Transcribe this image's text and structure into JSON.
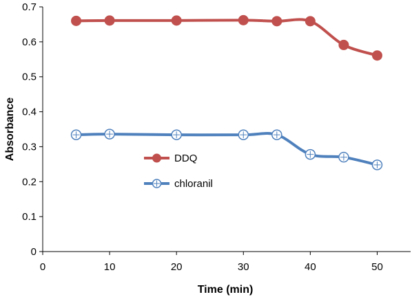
{
  "chart_data": {
    "type": "line",
    "xlabel": "Time (min)",
    "ylabel": "Absorbance",
    "xlim": [
      0,
      55
    ],
    "ylim": [
      0,
      0.7
    ],
    "x_ticks": [
      0,
      10,
      20,
      30,
      40,
      50
    ],
    "y_ticks": [
      0,
      0.1,
      0.2,
      0.3,
      0.4,
      0.5,
      0.6,
      0.7
    ],
    "x_tick_labels": [
      "0",
      "10",
      "20",
      "30",
      "40",
      "50"
    ],
    "y_tick_labels": [
      "0",
      "0.1",
      "0.2",
      "0.3",
      "0.4",
      "0.5",
      "0.6",
      "0.7"
    ],
    "grid": false,
    "legend_position": "center-left",
    "series": [
      {
        "name": "DDQ",
        "color": "#c0504d",
        "marker": "filled-circle",
        "x": [
          5,
          10,
          20,
          30,
          35,
          40,
          45,
          50
        ],
        "y": [
          0.66,
          0.661,
          0.661,
          0.662,
          0.659,
          0.659,
          0.591,
          0.561
        ]
      },
      {
        "name": "chloranil",
        "color": "#4f81bd",
        "marker": "open-circle-cross",
        "x": [
          5,
          10,
          20,
          30,
          35,
          40,
          45,
          50
        ],
        "y": [
          0.334,
          0.336,
          0.334,
          0.334,
          0.334,
          0.278,
          0.27,
          0.248
        ]
      }
    ]
  }
}
